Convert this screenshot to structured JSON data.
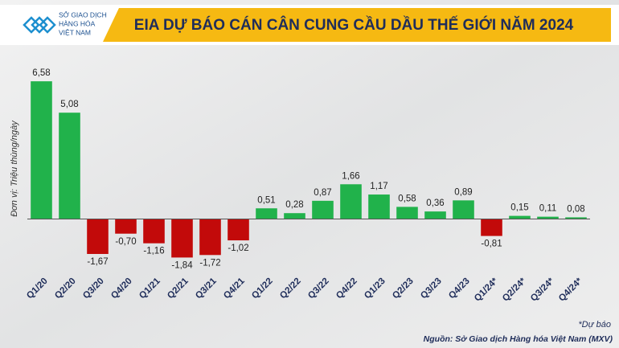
{
  "header": {
    "logo_lines": [
      "SỞ GIAO DỊCH",
      "HÀNG HÓA",
      "VIỆT NAM"
    ]
  },
  "chart_data": {
    "type": "bar",
    "title": "EIA DỰ BÁO CÁN CÂN CUNG CẦU DẦU THẾ GIỚI NĂM 2024",
    "y_label": "Đơn vị: Triệu thùng/ngày",
    "note": "*Dự báo",
    "source": "Nguồn: Sở Giao dịch Hàng hóa Việt Nam (MXV)",
    "categories": [
      "Q1/20",
      "Q2/20",
      "Q3/20",
      "Q4/20",
      "Q1/21",
      "Q2/21",
      "Q3/21",
      "Q4/21",
      "Q1/22",
      "Q2/22",
      "Q3/22",
      "Q4/22",
      "Q1/23",
      "Q2/23",
      "Q3/23",
      "Q4/23",
      "Q1/24*",
      "Q2/24*",
      "Q3/24*",
      "Q4/24*"
    ],
    "values": [
      6.58,
      5.08,
      -1.67,
      -0.7,
      -1.16,
      -1.84,
      -1.72,
      -1.02,
      0.51,
      0.28,
      0.87,
      1.66,
      1.17,
      0.58,
      0.36,
      0.89,
      -0.81,
      0.15,
      0.11,
      0.08
    ],
    "value_labels": [
      "6,58",
      "5,08",
      "-1,67",
      "-0,70",
      "-1,16",
      "-1,84",
      "-1,72",
      "-1,02",
      "0,51",
      "0,28",
      "0,87",
      "1,66",
      "1,17",
      "0,58",
      "0,36",
      "0,89",
      "-0,81",
      "0,15",
      "0,11",
      "0,08"
    ],
    "positive_color": "#21b24b",
    "negative_color": "#c20a0a",
    "ylim": [
      -2.4,
      7.2
    ]
  }
}
